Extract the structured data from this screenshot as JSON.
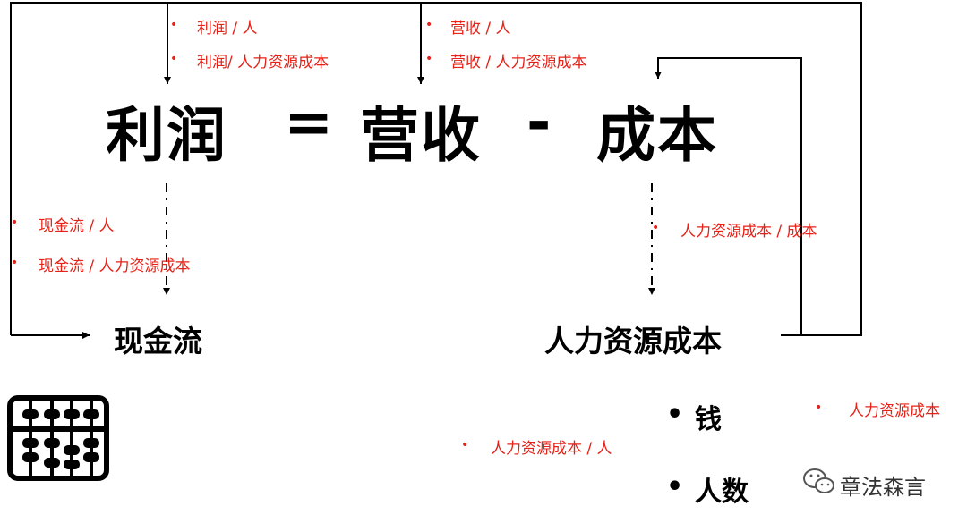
{
  "equation": {
    "profit": "利润",
    "equals": "=",
    "revenue": "营收",
    "minus": "-",
    "cost": "成本"
  },
  "profit_metrics": [
    "利润 / 人",
    "利润/ 人力资源成本"
  ],
  "revenue_metrics": [
    "营收  / 人",
    "营收 / 人力资源成本"
  ],
  "cashflow_metrics": [
    "现金流 / 人",
    "现金流 / 人力资源成本"
  ],
  "hr_cost_metric": "人力资源成本 / 成本",
  "nodes": {
    "cashflow": "现金流",
    "hr_cost": "人力资源成本"
  },
  "hr_cost_components": [
    "钱",
    "人数"
  ],
  "extra_metrics": {
    "hr_cost_per_person": "人力资源成本 / 人",
    "hr_cost": "人力资源成本"
  },
  "icon": "abacus-icon",
  "watermark": {
    "icon": "wechat-icon",
    "text": "章法森言"
  },
  "colors": {
    "annotation": "#e62117",
    "text": "#000000"
  }
}
